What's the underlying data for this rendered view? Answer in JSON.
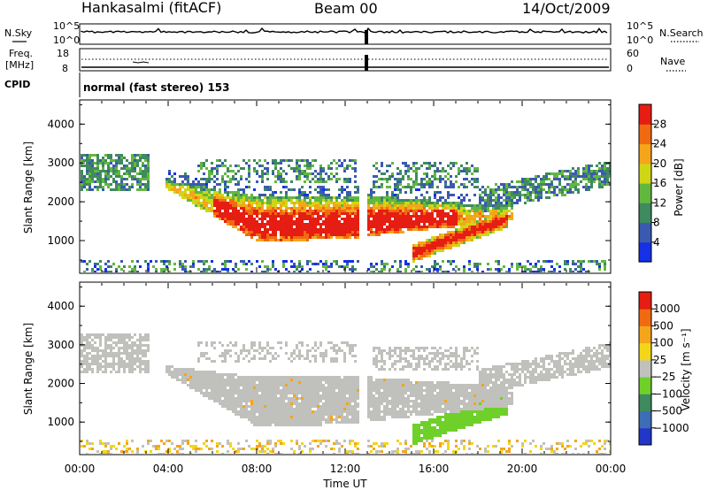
{
  "header": {
    "station": "Hankasalmi (fitACF)",
    "beam": "Beam 00",
    "date": "14/Oct/2009"
  },
  "aux": {
    "nsky_label": "N.Sky",
    "nsearch_label": "N.Search",
    "nsky_top": "10^5",
    "nsky_bottom": "10^0",
    "nsearch_top": "10^5",
    "nsearch_bottom": "10^0",
    "freq_label1": "Freq.",
    "freq_label2": "[MHz]",
    "freq_top": "18",
    "freq_bottom": "8",
    "nave_label": "Nave",
    "nave_top": "60",
    "nave_bottom": "0",
    "cpid_label": "CPID",
    "cpid_text": "normal (fast stereo) 153"
  },
  "chart_data": [
    {
      "type": "heatmap",
      "name": "power",
      "ylabel": "Slant Range [km]",
      "xlabel": "",
      "ylim": [
        180,
        4600
      ],
      "yticks": [
        "1000",
        "2000",
        "3000",
        "4000"
      ],
      "xlim": [
        0,
        24
      ],
      "colorbar": {
        "label": "Power [dB]",
        "ticks": [
          "4",
          "8",
          "12",
          "16",
          "20",
          "24",
          "28"
        ],
        "colors": [
          "#1530e6",
          "#3a5ab0",
          "#3f8a5e",
          "#62b83e",
          "#cfd616",
          "#f5a51a",
          "#f06a12",
          "#e61d12"
        ]
      }
    },
    {
      "type": "heatmap",
      "name": "velocity",
      "ylabel": "Slant Range [km]",
      "xlabel": "Time UT",
      "ylim": [
        180,
        4600
      ],
      "yticks": [
        "1000",
        "2000",
        "3000",
        "4000"
      ],
      "xlim": [
        0,
        24
      ],
      "xticks": [
        "00:00",
        "04:00",
        "08:00",
        "12:00",
        "16:00",
        "20:00",
        "00:00"
      ],
      "colorbar": {
        "label": "Velocity [m s⁻¹]",
        "ticks": [
          "1000",
          "500",
          "100",
          "25",
          "−25",
          "−100",
          "−500",
          "−1000"
        ],
        "colors": [
          "#2236c8",
          "#3d6eb5",
          "#3f8a5e",
          "#6fd02a",
          "#c0c0bc",
          "#f3d618",
          "#f5a51a",
          "#f06a12",
          "#e61d12"
        ]
      }
    }
  ]
}
